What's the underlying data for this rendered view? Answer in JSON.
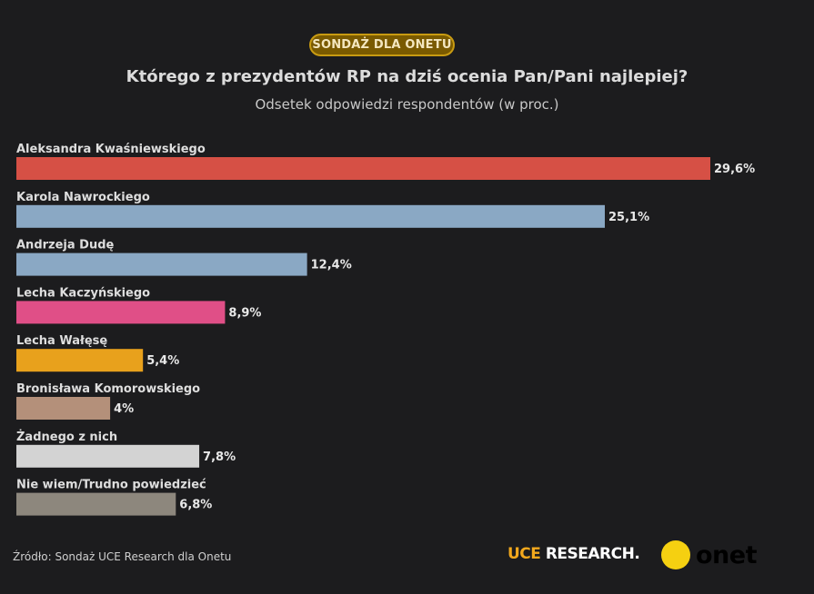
{
  "header": {
    "badge": "SONDAŻ DLA ONETU",
    "title": "Którego z prezydentów RP na dziś ocenia Pan/Pani najlepiej?",
    "subtitle": "Odsetek odpowiedzi respondentów (w proc.)"
  },
  "chart_data": {
    "type": "bar",
    "orientation": "horizontal",
    "categories": [
      "Aleksandra Kwaśniewskiego",
      "Karola Nawrockiego",
      "Andrzeja Dudę",
      "Lecha Kaczyńskiego",
      "Lecha Wałęsę",
      "Bronisława Komorowskiego",
      "Żadnego z nich",
      "Nie wiem/Trudno powiedzieć"
    ],
    "values": [
      29.6,
      25.1,
      12.4,
      8.9,
      5.4,
      4,
      7.8,
      6.8
    ],
    "value_labels": [
      "29,6%",
      "25,1%",
      "12,4%",
      "8,9%",
      "5,4%",
      "4%",
      "7,8%",
      "6,8%"
    ],
    "colors": [
      "#d65045",
      "#8aa8c4",
      "#8aa8c4",
      "#e04f87",
      "#e8a11c",
      "#b4907a",
      "#d3d3d3",
      "#8d877d"
    ],
    "title": "Którego z prezydentów RP na dziś ocenia Pan/Pani najlepiej?",
    "subtitle": "Odsetek odpowiedzi respondentów (w proc.)",
    "xlabel": "",
    "ylabel": "",
    "grid": false,
    "legend": "none"
  },
  "footer": {
    "source": "Źródło: Sondaż UCE Research dla Onetu",
    "logo_uce": "UCE",
    "logo_research": "RESEARCH.",
    "logo_onet": "onet"
  },
  "colors": {
    "background": "#1c1c1e",
    "badge_fill": "#7a5a00",
    "badge_border": "#c89b12",
    "uce_orange": "#f2a81d",
    "onet_yellow": "#f5d011"
  }
}
